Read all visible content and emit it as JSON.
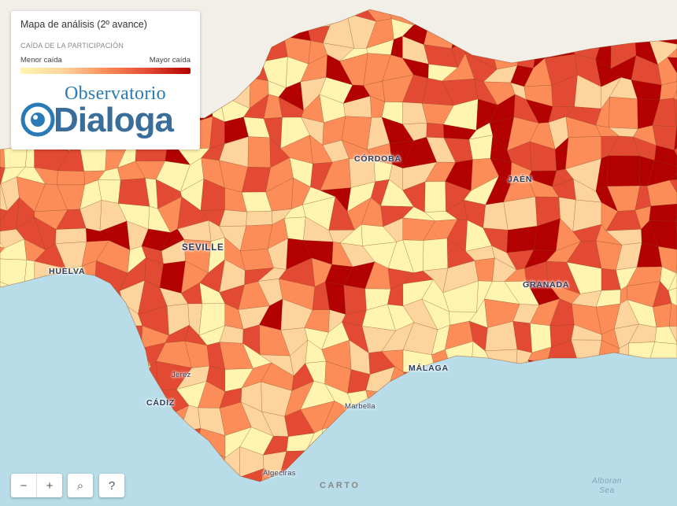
{
  "legend": {
    "title": "Mapa de análisis (2º avance)",
    "subtitle": "CAÍDA DE LA PARTICIPACIÓN",
    "min_label": "Menor caída",
    "max_label": "Mayor caída",
    "logo_top": "Observatorio",
    "logo_bottom": "Dialoga"
  },
  "cities": {
    "cordoba": "CÓRDOBA",
    "jaen": "JAÉN",
    "seville": "SEVILLE",
    "huelva": "HUELVA",
    "granada": "GRANADA",
    "malaga": "MÁLAGA",
    "jerez": "Jerez",
    "cadiz": "CÁDIZ",
    "marbella": "Marbella",
    "algeciras": "Algeciras"
  },
  "sea": {
    "alboran_1": "Alboran",
    "alboran_2": "Sea"
  },
  "controls": {
    "zoom_out": "−",
    "zoom_in": "+",
    "search": "⌕",
    "help": "?"
  },
  "attribution": "CARTO",
  "colors": {
    "scale": [
      "#fff5b0",
      "#fdd49e",
      "#fc8d59",
      "#e34a33",
      "#b30000"
    ],
    "sea": "#b8dde8",
    "land_outside": "#f2efe9"
  }
}
